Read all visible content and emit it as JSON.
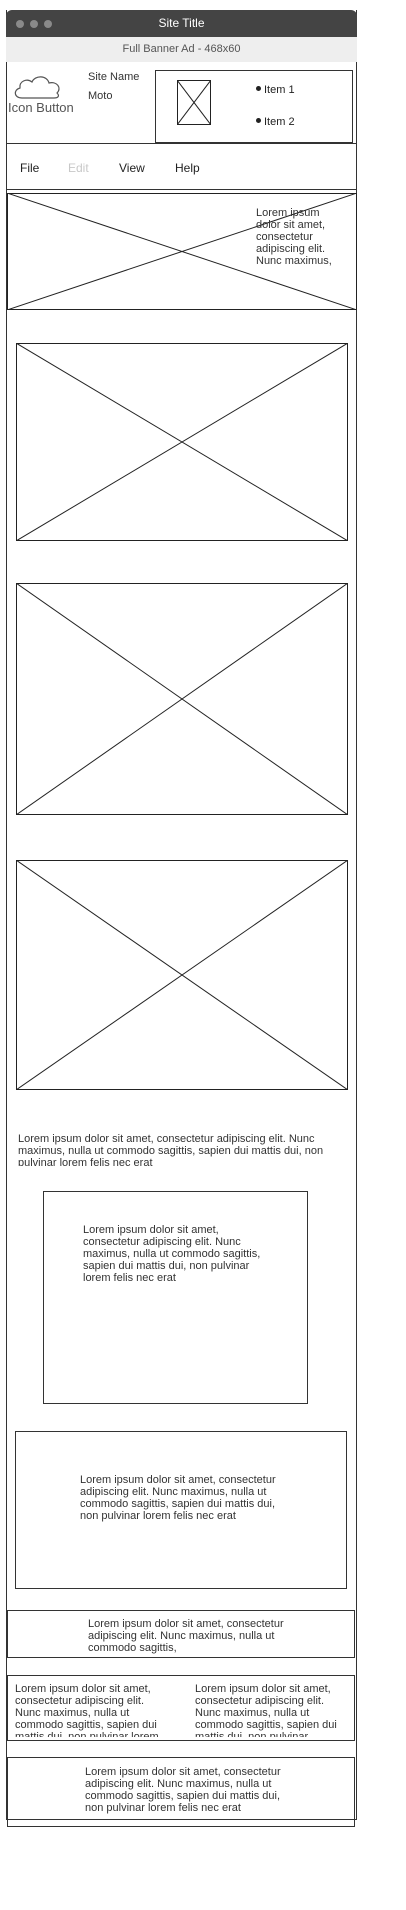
{
  "window": {
    "title": "Site Title"
  },
  "banner": {
    "label": "Full Banner Ad - 468x60"
  },
  "header": {
    "icon_button_label": "Icon Button",
    "icon": "cloud-icon",
    "site_name": "Site Name",
    "site_moto": "Moto",
    "list_items": [
      "Item 1",
      "Item 2"
    ]
  },
  "menu": {
    "items": [
      {
        "label": "File",
        "enabled": true
      },
      {
        "label": "Edit",
        "enabled": false
      },
      {
        "label": "View",
        "enabled": true
      },
      {
        "label": "Help",
        "enabled": true
      }
    ]
  },
  "hero": {
    "text": "Lorem ipsum dolor sit amet, consectetur adipiscing elit. Nunc maximus,"
  },
  "content": {
    "paragraph_1": "Lorem ipsum dolor sit amet, consectetur adipiscing elit. Nunc maximus, nulla ut commodo sagittis, sapien dui mattis dui, non pulvinar lorem felis nec erat",
    "box_1_text": "Lorem ipsum dolor sit amet, consectetur adipiscing elit. Nunc maximus, nulla ut commodo sagittis, sapien dui mattis dui, non pulvinar lorem felis nec erat",
    "box_2_text": "Lorem ipsum dolor sit amet, consectetur adipiscing elit. Nunc maximus, nulla ut commodo sagittis, sapien dui mattis dui, non pulvinar lorem felis nec erat",
    "box_3_text": "Lorem ipsum dolor sit amet, consectetur adipiscing elit. Nunc maximus, nulla ut commodo sagittis,",
    "col_left_text": "Lorem ipsum dolor sit amet, consectetur adipiscing elit. Nunc maximus, nulla ut commodo sagittis, sapien dui mattis dui, non pulvinar lorem",
    "col_right_text": "Lorem ipsum dolor sit amet, consectetur adipiscing elit. Nunc maximus, nulla ut commodo sagittis, sapien dui mattis dui, non pulvinar",
    "footer_text": "Lorem ipsum dolor sit amet, consectetur adipiscing elit. Nunc maximus, nulla ut commodo sagittis, sapien dui mattis dui, non pulvinar lorem felis nec erat"
  }
}
